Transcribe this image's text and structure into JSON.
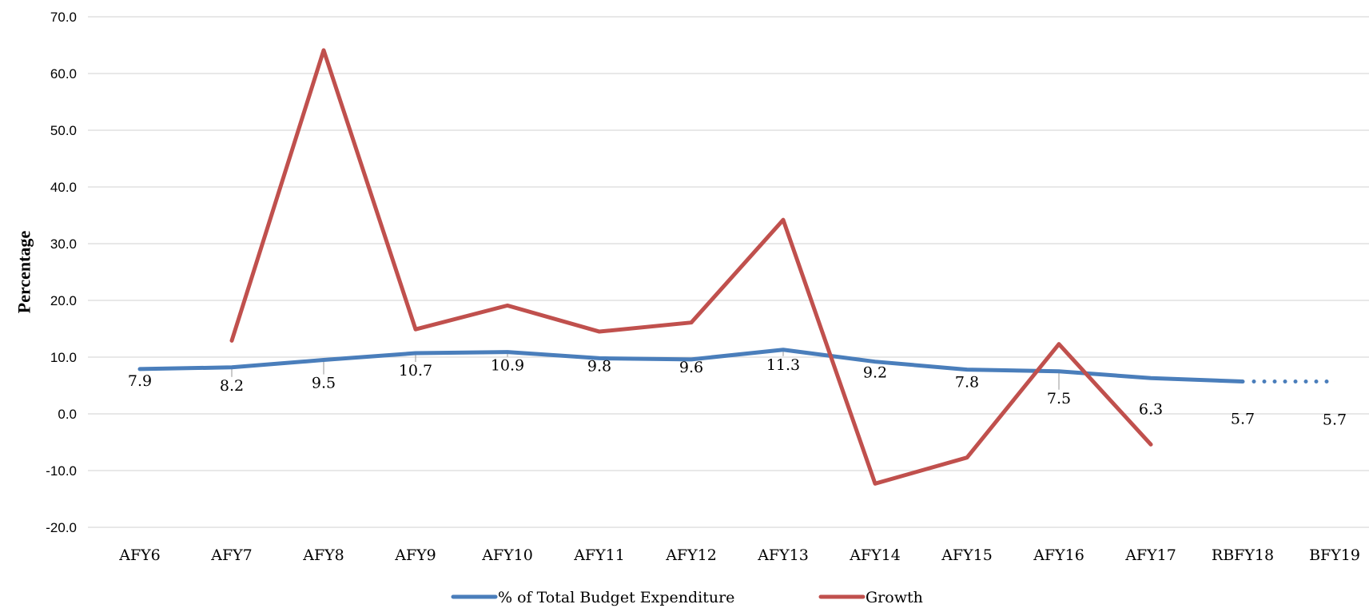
{
  "chart_data": {
    "type": "line",
    "title": "",
    "xlabel": "",
    "ylabel": "Percentage",
    "ylim": [
      -20,
      70
    ],
    "yticks": [
      -20,
      -10,
      0,
      10,
      20,
      30,
      40,
      50,
      60,
      70
    ],
    "ytick_labels": [
      "-20.0",
      "-10.0",
      "0.0",
      "10.0",
      "20.0",
      "30.0",
      "40.0",
      "50.0",
      "60.0",
      "70.0"
    ],
    "grid": true,
    "legend_position": "bottom",
    "categories": [
      "AFY6",
      "AFY7",
      "AFY8",
      "AFY9",
      "AFY10",
      "AFY11",
      "AFY12",
      "AFY13",
      "AFY14",
      "AFY15",
      "AFY16",
      "AFY17",
      "RBFY18",
      "BFY19"
    ],
    "series": [
      {
        "name": "% of Total Budget Expenditure",
        "color": "#4a7ebb",
        "values": [
          7.9,
          8.2,
          9.5,
          10.7,
          10.9,
          9.8,
          9.6,
          11.3,
          9.2,
          7.8,
          7.5,
          6.3,
          5.7,
          5.7
        ],
        "data_labels": [
          "7.9",
          "8.2",
          "9.5",
          "10.7",
          "10.9",
          "9.8",
          "9.6",
          "11.3",
          "9.2",
          "7.8",
          "7.5",
          "6.3",
          "5.7",
          "5.7"
        ],
        "dotted_from_index": 12
      },
      {
        "name": "Growth",
        "color": "#c0504d",
        "values": [
          null,
          12.9,
          64.1,
          14.9,
          19.1,
          14.5,
          16.1,
          34.2,
          -12.3,
          -7.7,
          12.3,
          -5.4,
          null,
          null
        ]
      }
    ]
  }
}
